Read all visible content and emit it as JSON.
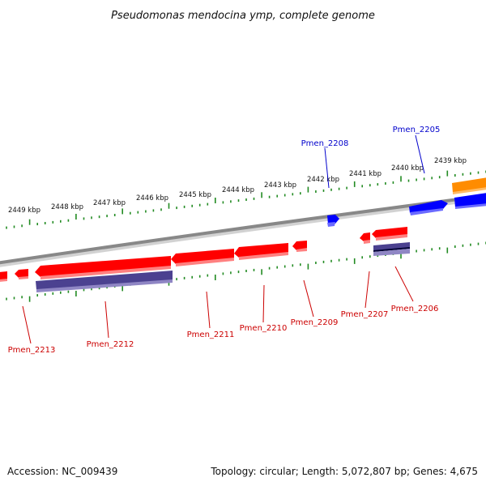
{
  "title": "Pseudomonas mendocina ymp, complete genome",
  "footer": {
    "accession": "Accession: NC_009439",
    "summary": "Topology: circular; Length: 5,072,807 bp; Genes: 4,675"
  },
  "scale_labels": [
    "2449 kbp",
    "2448 kbp",
    "2447 kbp",
    "2446 kbp",
    "2445 kbp",
    "2444 kbp",
    "2443 kbp",
    "2442 kbp",
    "2441 kbp",
    "2440 kbp",
    "2439 kbp"
  ],
  "colors": {
    "forward_gene": "#0000ff",
    "reverse_gene": "#ff0000",
    "rna_gene": "#4b4190",
    "orange_gene": "#ff8c00",
    "backbone": "#888888",
    "tick": "#228b22",
    "forward_label": "#0000cc",
    "reverse_label": "#cc0000"
  },
  "forward_labels": [
    "Pmen_2208",
    "Pmen_2205"
  ],
  "reverse_labels": [
    "Pmen_2213",
    "Pmen_2212",
    "Pmen_2211",
    "Pmen_2210",
    "Pmen_2209",
    "Pmen_2207",
    "Pmen_2206"
  ]
}
